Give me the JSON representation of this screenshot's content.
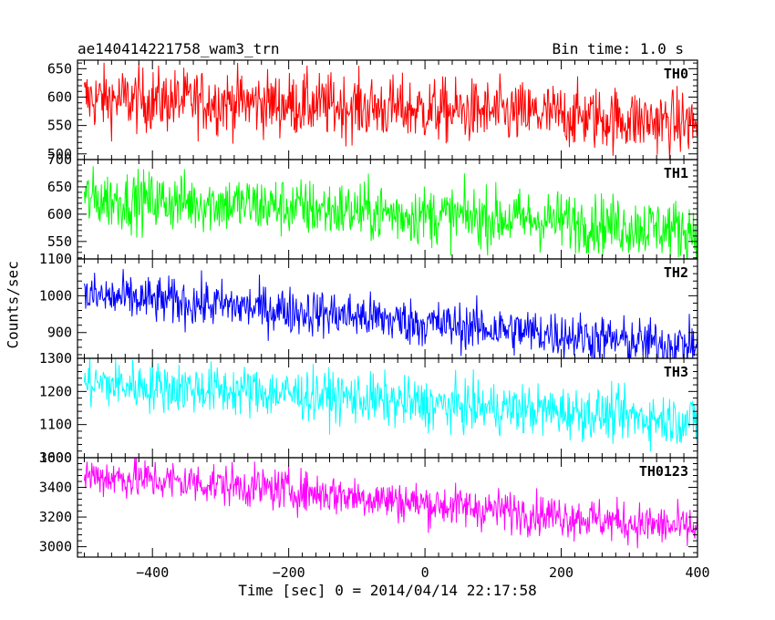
{
  "header": {
    "title": "ae140414221758_wam3_trn",
    "bin_time": "Bin time: 1.0 s"
  },
  "chart_data": {
    "type": "line",
    "xlabel": "Time [sec] 0 = 2014/04/14 22:17:58",
    "ylabel": "Counts/sec",
    "xlim": [
      -510,
      400
    ],
    "xticks": [
      -400,
      -200,
      0,
      200,
      400
    ],
    "panels": [
      {
        "name": "TH0",
        "color": "#ff0000",
        "ylim": [
          490,
          665
        ],
        "yticks": [
          500,
          550,
          600,
          650
        ],
        "trend": [
          [
            -500,
            597
          ],
          [
            -300,
            592
          ],
          [
            -100,
            583
          ],
          [
            0,
            577
          ],
          [
            200,
            568
          ],
          [
            300,
            560
          ],
          [
            400,
            553
          ]
        ],
        "noise": 28
      },
      {
        "name": "TH1",
        "color": "#00ff00",
        "ylim": [
          518,
          700
        ],
        "yticks": [
          550,
          600,
          650,
          700
        ],
        "trend": [
          [
            -500,
            628
          ],
          [
            -300,
            620
          ],
          [
            -100,
            605
          ],
          [
            0,
            598
          ],
          [
            200,
            588
          ],
          [
            300,
            578
          ],
          [
            400,
            570
          ]
        ],
        "noise": 27
      },
      {
        "name": "TH2",
        "color": "#0000ff",
        "ylim": [
          830,
          1100
        ],
        "yticks": [
          900,
          1000,
          1100
        ],
        "trend": [
          [
            -500,
            1000
          ],
          [
            -300,
            975
          ],
          [
            -100,
            945
          ],
          [
            0,
            925
          ],
          [
            200,
            895
          ],
          [
            300,
            875
          ],
          [
            400,
            865
          ]
        ],
        "noise": 32
      },
      {
        "name": "TH3",
        "color": "#00ffff",
        "ylim": [
          1000,
          1300
        ],
        "yticks": [
          1000,
          1100,
          1200,
          1300
        ],
        "trend": [
          [
            -500,
            1225
          ],
          [
            -300,
            1205
          ],
          [
            -100,
            1180
          ],
          [
            0,
            1160
          ],
          [
            200,
            1140
          ],
          [
            300,
            1125
          ],
          [
            400,
            1110
          ]
        ],
        "noise": 38
      },
      {
        "name": "TH0123",
        "color": "#ff00ff",
        "ylim": [
          2930,
          3600
        ],
        "yticks": [
          3000,
          3200,
          3400,
          3600
        ],
        "trend": [
          [
            -500,
            3480
          ],
          [
            -300,
            3420
          ],
          [
            -100,
            3340
          ],
          [
            0,
            3290
          ],
          [
            200,
            3210
          ],
          [
            300,
            3160
          ],
          [
            400,
            3120
          ]
        ],
        "noise": 70
      }
    ]
  }
}
